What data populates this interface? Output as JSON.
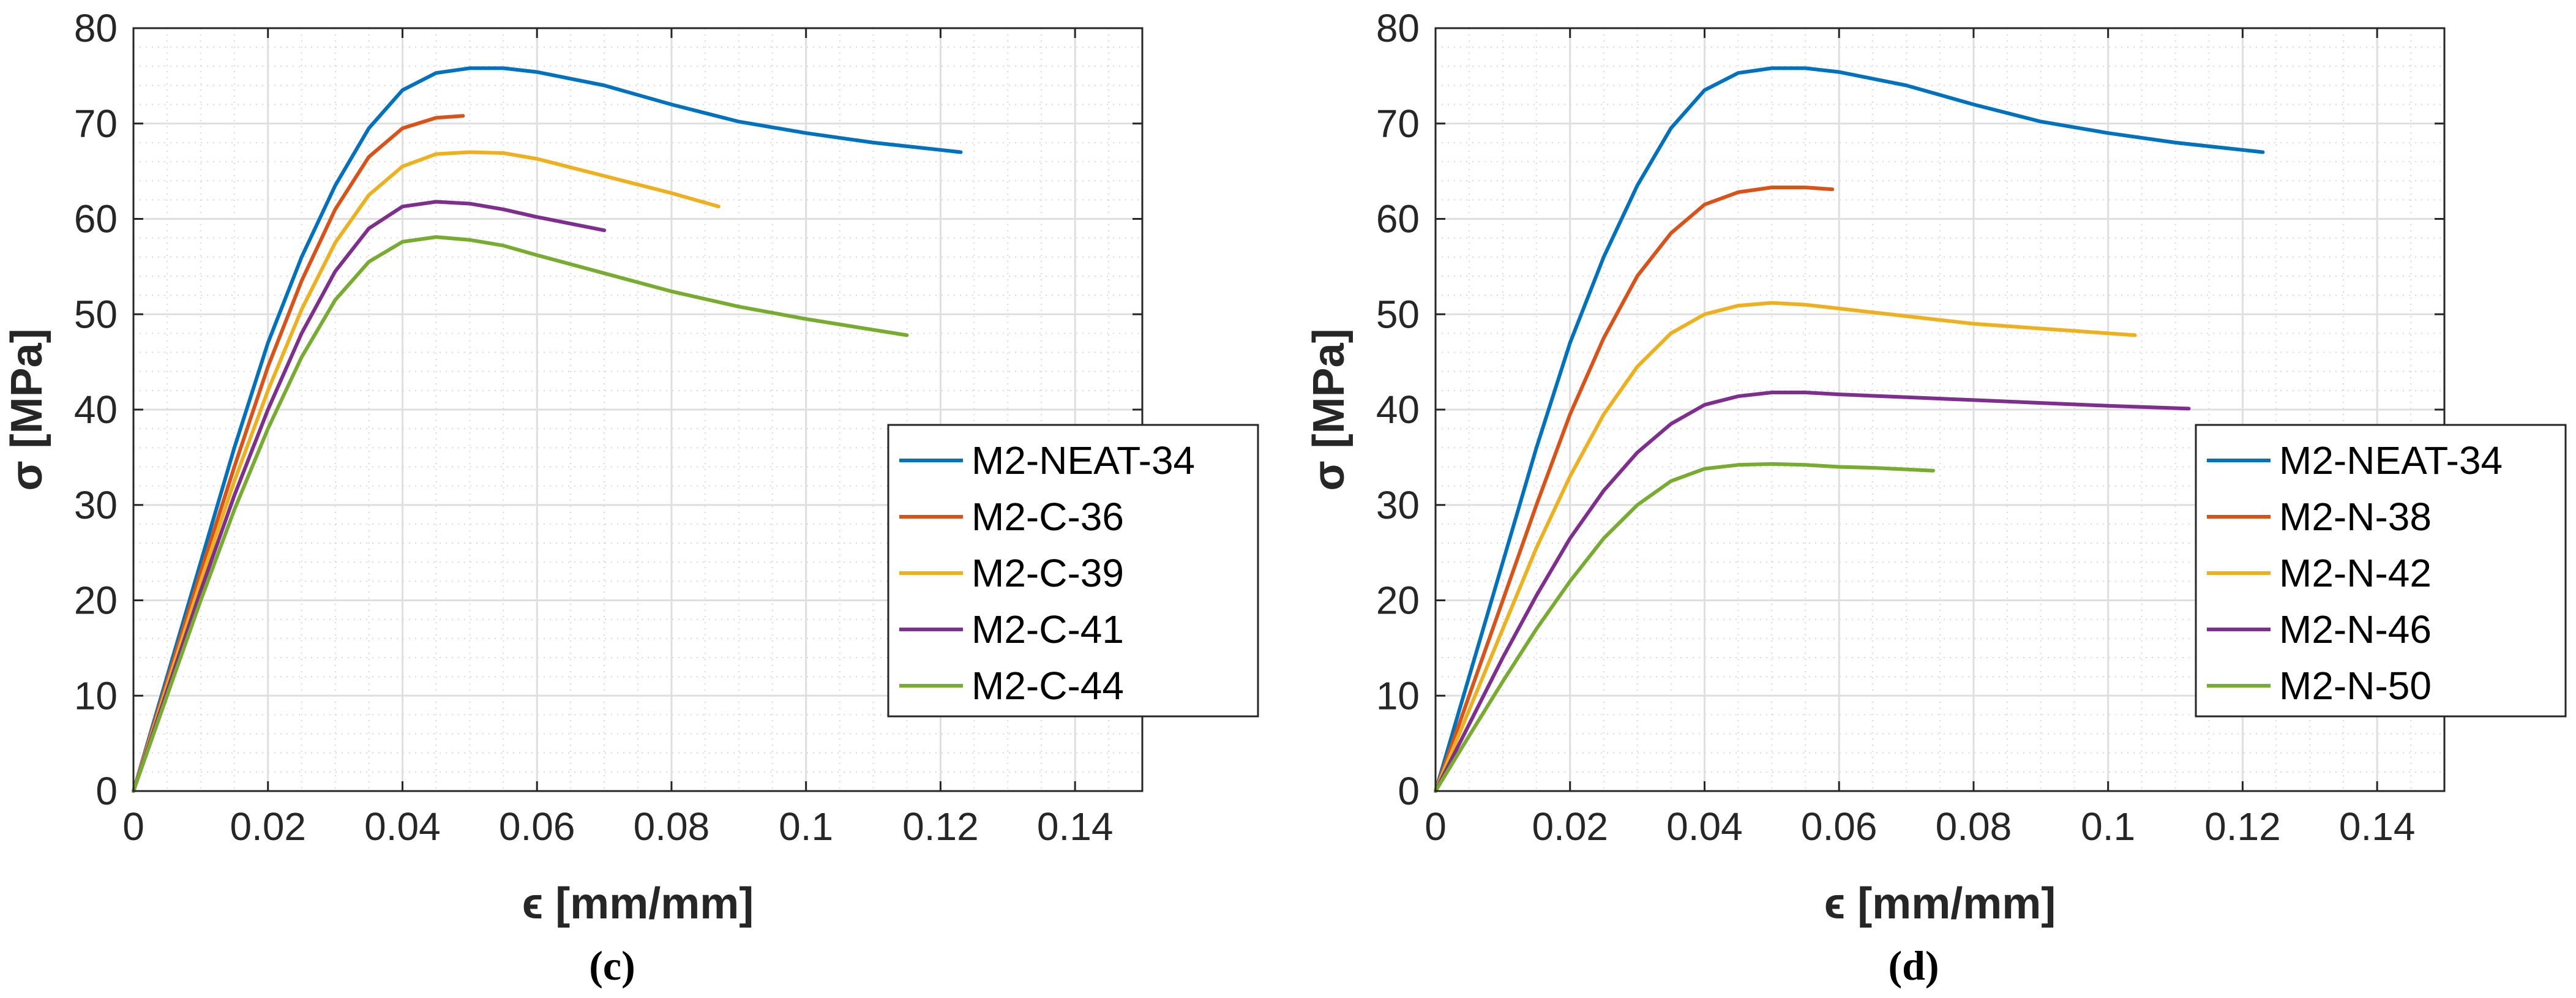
{
  "chart_data": [
    {
      "type": "line",
      "caption": "(c)",
      "xlabel": "ϵ [mm/mm]",
      "ylabel": "σ [MPa]",
      "xlim": [
        0,
        0.15
      ],
      "ylim": [
        0,
        80
      ],
      "xticks": [
        "0",
        "0.02",
        "0.04",
        "0.06",
        "0.08",
        "0.1",
        "0.12",
        "0.14"
      ],
      "yticks": [
        "0",
        "10",
        "20",
        "30",
        "40",
        "50",
        "60",
        "70",
        "80"
      ],
      "grid": true,
      "minor_grid": true,
      "legend_position": "right-middle",
      "series": [
        {
          "name": "M2-NEAT-34",
          "color": "#0072BD",
          "x": [
            0,
            0.005,
            0.01,
            0.015,
            0.02,
            0.025,
            0.03,
            0.035,
            0.04,
            0.045,
            0.05,
            0.055,
            0.06,
            0.07,
            0.08,
            0.09,
            0.1,
            0.11,
            0.123
          ],
          "y": [
            0,
            12,
            24,
            36,
            47,
            56,
            63.5,
            69.5,
            73.5,
            75.3,
            75.8,
            75.8,
            75.4,
            74,
            72,
            70.2,
            69,
            68,
            67
          ]
        },
        {
          "name": "M2-C-36",
          "color": "#D95319",
          "x": [
            0,
            0.005,
            0.01,
            0.015,
            0.02,
            0.025,
            0.03,
            0.035,
            0.04,
            0.045,
            0.049
          ],
          "y": [
            0,
            11.5,
            23,
            34,
            44.5,
            53.5,
            61,
            66.5,
            69.5,
            70.6,
            70.8
          ]
        },
        {
          "name": "M2-C-39",
          "color": "#EDB120",
          "x": [
            0,
            0.005,
            0.01,
            0.015,
            0.02,
            0.025,
            0.03,
            0.035,
            0.04,
            0.045,
            0.05,
            0.055,
            0.06,
            0.07,
            0.08,
            0.087
          ],
          "y": [
            0,
            11,
            22,
            32.5,
            42,
            50.5,
            57.5,
            62.5,
            65.5,
            66.8,
            67,
            66.9,
            66.3,
            64.5,
            62.7,
            61.3
          ]
        },
        {
          "name": "M2-C-41",
          "color": "#7E2F8E",
          "x": [
            0,
            0.005,
            0.01,
            0.015,
            0.02,
            0.025,
            0.03,
            0.035,
            0.04,
            0.045,
            0.05,
            0.055,
            0.06,
            0.065,
            0.07
          ],
          "y": [
            0,
            10.5,
            21,
            31,
            40,
            48,
            54.5,
            59,
            61.3,
            61.8,
            61.6,
            61,
            60.2,
            59.5,
            58.8
          ]
        },
        {
          "name": "M2-C-44",
          "color": "#77AC30",
          "x": [
            0,
            0.005,
            0.01,
            0.015,
            0.02,
            0.025,
            0.03,
            0.035,
            0.04,
            0.045,
            0.05,
            0.055,
            0.06,
            0.07,
            0.08,
            0.09,
            0.1,
            0.115
          ],
          "y": [
            0,
            10,
            20,
            29.5,
            38,
            45.5,
            51.5,
            55.5,
            57.6,
            58.1,
            57.8,
            57.2,
            56.2,
            54.3,
            52.4,
            50.8,
            49.5,
            47.8
          ]
        }
      ],
      "legend": [
        "M2-NEAT-34",
        "M2-C-36",
        "M2-C-39",
        "M2-C-41",
        "M2-C-44"
      ]
    },
    {
      "type": "line",
      "caption": "(d)",
      "xlabel": "ϵ [mm/mm]",
      "ylabel": "σ [MPa]",
      "xlim": [
        0,
        0.15
      ],
      "ylim": [
        0,
        80
      ],
      "xticks": [
        "0",
        "0.02",
        "0.04",
        "0.06",
        "0.08",
        "0.1",
        "0.12",
        "0.14"
      ],
      "yticks": [
        "0",
        "10",
        "20",
        "30",
        "40",
        "50",
        "60",
        "70",
        "80"
      ],
      "grid": true,
      "minor_grid": true,
      "legend_position": "right-middle",
      "series": [
        {
          "name": "M2-NEAT-34",
          "color": "#0072BD",
          "x": [
            0,
            0.005,
            0.01,
            0.015,
            0.02,
            0.025,
            0.03,
            0.035,
            0.04,
            0.045,
            0.05,
            0.055,
            0.06,
            0.07,
            0.08,
            0.09,
            0.1,
            0.11,
            0.123
          ],
          "y": [
            0,
            12,
            24,
            36,
            47,
            56,
            63.5,
            69.5,
            73.5,
            75.3,
            75.8,
            75.8,
            75.4,
            74,
            72,
            70.2,
            69,
            68,
            67
          ]
        },
        {
          "name": "M2-N-38",
          "color": "#D95319",
          "x": [
            0,
            0.005,
            0.01,
            0.015,
            0.02,
            0.025,
            0.03,
            0.035,
            0.04,
            0.045,
            0.05,
            0.055,
            0.059
          ],
          "y": [
            0,
            10,
            20,
            30,
            39.5,
            47.5,
            54,
            58.5,
            61.5,
            62.8,
            63.3,
            63.3,
            63.1
          ]
        },
        {
          "name": "M2-N-42",
          "color": "#EDB120",
          "x": [
            0,
            0.005,
            0.01,
            0.015,
            0.02,
            0.025,
            0.03,
            0.035,
            0.04,
            0.045,
            0.05,
            0.055,
            0.06,
            0.07,
            0.08,
            0.09,
            0.104
          ],
          "y": [
            0,
            8.5,
            17,
            25.5,
            33,
            39.5,
            44.5,
            48,
            50,
            50.9,
            51.2,
            51,
            50.6,
            49.8,
            49,
            48.5,
            47.8
          ]
        },
        {
          "name": "M2-N-46",
          "color": "#7E2F8E",
          "x": [
            0,
            0.005,
            0.01,
            0.015,
            0.02,
            0.025,
            0.03,
            0.035,
            0.04,
            0.045,
            0.05,
            0.055,
            0.06,
            0.07,
            0.08,
            0.09,
            0.1,
            0.112
          ],
          "y": [
            0,
            7,
            14,
            20.5,
            26.5,
            31.5,
            35.5,
            38.5,
            40.5,
            41.4,
            41.8,
            41.8,
            41.6,
            41.3,
            41,
            40.7,
            40.4,
            40.1
          ]
        },
        {
          "name": "M2-N-50",
          "color": "#77AC30",
          "x": [
            0,
            0.005,
            0.01,
            0.015,
            0.02,
            0.025,
            0.03,
            0.035,
            0.04,
            0.045,
            0.05,
            0.055,
            0.06,
            0.065,
            0.074
          ],
          "y": [
            0,
            5.8,
            11.5,
            17,
            22,
            26.5,
            30,
            32.5,
            33.8,
            34.2,
            34.3,
            34.2,
            34,
            33.9,
            33.6
          ]
        }
      ],
      "legend": [
        "M2-NEAT-34",
        "M2-N-38",
        "M2-N-42",
        "M2-N-46",
        "M2-N-50"
      ]
    }
  ]
}
